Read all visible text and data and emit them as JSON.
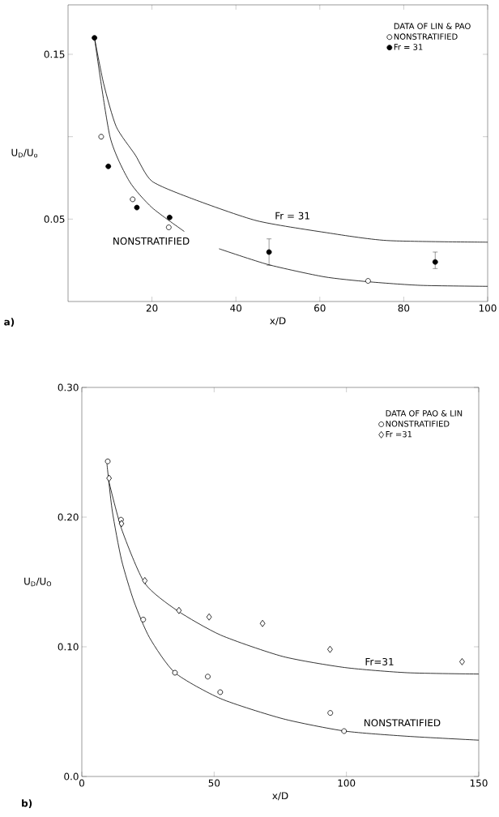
{
  "chart_data": [
    {
      "type": "scatter",
      "xlabel": "x/D",
      "ylabel": "U$_{D}$/U$_{o}$",
      "legend_title": "DATA OF LIN & PAO",
      "legend": "top right",
      "grid": false,
      "xlim": [
        0,
        100
      ],
      "ylim": [
        0,
        0.18
      ],
      "xticks": [
        20,
        40,
        60,
        80,
        100
      ],
      "yticks": [
        0.05,
        {
          "value": 0.1,
          "label": null
        },
        0.15
      ],
      "series": [
        {
          "name": "NONSTRATIFIED",
          "marker": "circle",
          "color": "#ffffff",
          "x": [
            7.9,
            15.4,
            24,
            71.5
          ],
          "values": [
            0.1,
            0.062,
            0.045,
            0.0125
          ]
        },
        {
          "name": "Fr = 31",
          "marker": "circle",
          "color": "#000000",
          "x": [
            6.3,
            9.6,
            16.4,
            24.2,
            47.9,
            87.5
          ],
          "values": [
            0.16,
            0.082,
            0.057,
            0.051,
            0.03,
            0.024
          ],
          "errors": [
            null,
            null,
            null,
            null,
            [
              0.022,
              0.038
            ],
            [
              0.02,
              0.03
            ]
          ]
        },
        {
          "type": "line",
          "line_style": "solid",
          "marker": "none",
          "color": "#000000",
          "x": [
            6.3,
            8.5,
            11.5,
            16,
            20,
            30,
            45,
            61,
            76,
            100
          ],
          "values": [
            0.16,
            0.132,
            0.106,
            0.089,
            0.073,
            0.062,
            0.049,
            0.042,
            0.037,
            0.036
          ]
        },
        {
          "type": "line",
          "line_style": "solid",
          "marker": "none",
          "color": "#000000",
          "x": [
            6.3,
            10,
            14.6,
            20,
            27.7,
            32,
            36,
            47.7,
            61,
            71.5,
            84,
            100
          ],
          "values": [
            0.16,
            0.1,
            0.073,
            0.057,
            0.0425,
            null,
            0.032,
            0.0224,
            0.015,
            0.012,
            0.0098,
            0.0092
          ]
        }
      ],
      "annotations": [
        "Fr = 31",
        "NONSTRATIFIED",
        "a)"
      ]
    },
    {
      "type": "scatter",
      "xlabel": "x/D",
      "ylabel": "U$_{D}$/U$_{O}$",
      "legend_title": "DATA OF PAO & LIN",
      "legend": "top right",
      "grid": false,
      "xlim": [
        0,
        150
      ],
      "ylim": [
        0,
        0.3
      ],
      "xticks": [
        0,
        50,
        100,
        150
      ],
      "yticks": [
        {
          "value": 0,
          "label": "0.0"
        },
        {
          "value": 0.1,
          "label": "0.10"
        },
        {
          "value": 0.2,
          "label": "0.20"
        },
        {
          "value": 0.3,
          "label": "0.30"
        }
      ],
      "series": [
        {
          "name": "NONSTRATIFIED",
          "marker": "circle",
          "color": "#ffffff",
          "x": [
            9.8,
            14.8,
            23.2,
            35.2,
            47.6,
            52.3,
            93.9,
            99.1
          ],
          "values": [
            0.243,
            0.198,
            0.121,
            0.08,
            0.077,
            0.065,
            0.049,
            0.035
          ]
        },
        {
          "name": "Fr =31",
          "marker": "diamond",
          "color": "#ffffff",
          "x": [
            10.3,
            15,
            23.8,
            36.7,
            48.1,
            68.3,
            93.8,
            143.7
          ],
          "values": [
            0.23,
            0.195,
            0.151,
            0.128,
            0.123,
            0.118,
            0.098,
            0.0885
          ]
        },
        {
          "type": "line",
          "line_style": "solid",
          "marker": "none",
          "color": "#000000",
          "x": [
            9.8,
            15,
            23.8,
            36,
            52.5,
            76,
            99.4,
            123,
            150
          ],
          "values": [
            0.231,
            0.191,
            0.149,
            0.128,
            0.109,
            0.0925,
            0.084,
            0.08,
            0.079
          ]
        },
        {
          "type": "line",
          "line_style": "solid",
          "marker": "none",
          "color": "#000000",
          "x": [
            9.5,
            11.5,
            15,
            19.7,
            25.6,
            35.2,
            52.5,
            76,
            99.4,
            123,
            150
          ],
          "values": [
            0.241,
            0.205,
            0.167,
            0.135,
            0.107,
            0.08,
            0.06,
            0.0445,
            0.035,
            0.031,
            0.028
          ]
        }
      ],
      "annotations": [
        "Fr=31",
        "NONSTRATIFIED",
        "b)"
      ]
    }
  ]
}
